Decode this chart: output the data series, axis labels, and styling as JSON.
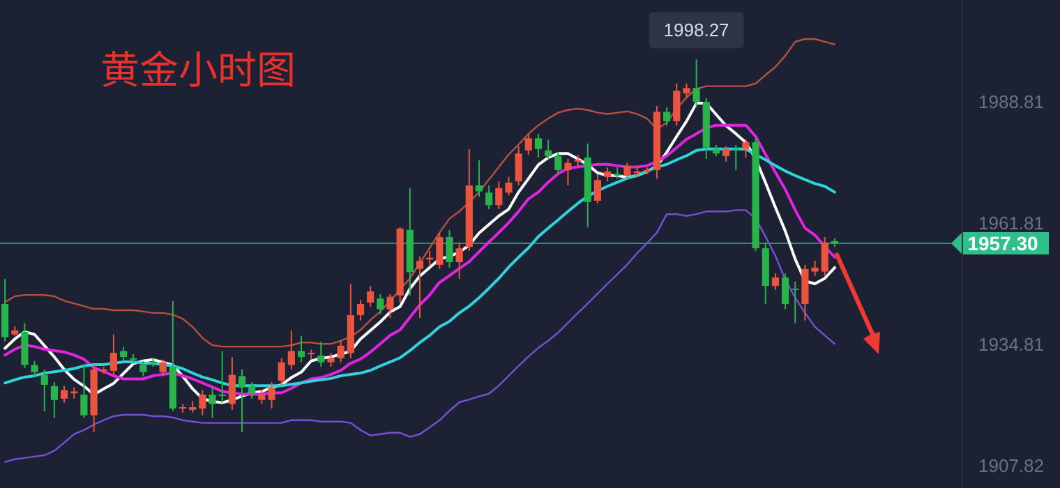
{
  "chart_data": {
    "type": "candlestick",
    "title": "黄金小时图",
    "categories": [
      null,
      null,
      null,
      null,
      null,
      null,
      null,
      null,
      null,
      null,
      null,
      null,
      null,
      null,
      null,
      null,
      null,
      null,
      null,
      null,
      null,
      null,
      null,
      null,
      null,
      null,
      null,
      null,
      null,
      null,
      null,
      null,
      null,
      null,
      null,
      null,
      null,
      null,
      null,
      null,
      null,
      null,
      null,
      null,
      null,
      null,
      null,
      null,
      null,
      null,
      null,
      null,
      null,
      null,
      null,
      null,
      null,
      null,
      null,
      null,
      null,
      null,
      null,
      null,
      null,
      null,
      null,
      null,
      null,
      null,
      null,
      null,
      null,
      null,
      null,
      null,
      null,
      null,
      null,
      null,
      null,
      null,
      null,
      null,
      null
    ],
    "ohlc": [
      [
        1943.8,
        1949.4,
        1935.4,
        1936.4
      ],
      [
        1937.0,
        1938.8,
        1936.7,
        1937.9
      ],
      [
        1937.6,
        1939.5,
        1929.5,
        1930.2
      ],
      [
        1930.2,
        1931.1,
        1927.7,
        1928.6
      ],
      [
        1928.0,
        1929.2,
        1919.9,
        1925.8
      ],
      [
        1925.5,
        1926.4,
        1918.4,
        1922.4
      ],
      [
        1922.7,
        1925.5,
        1921.8,
        1924.6
      ],
      [
        1923.9,
        1925.2,
        1922.7,
        1924.3
      ],
      [
        1923.6,
        1930.2,
        1918.4,
        1919.0
      ],
      [
        1919.0,
        1930.2,
        1915.3,
        1929.2
      ],
      [
        1928.9,
        1929.8,
        1928.3,
        1929.2
      ],
      [
        1928.9,
        1937.0,
        1928.0,
        1932.9
      ],
      [
        1933.3,
        1934.2,
        1931.1,
        1932.0
      ],
      [
        1931.7,
        1932.6,
        1930.5,
        1931.4
      ],
      [
        1930.2,
        1931.1,
        1927.7,
        1928.6
      ],
      [
        1930.8,
        1931.7,
        1929.8,
        1930.5
      ],
      [
        1928.6,
        1931.4,
        1927.7,
        1930.8
      ],
      [
        1929.8,
        1944.4,
        1919.9,
        1920.5
      ],
      [
        1920.5,
        1921.5,
        1919.6,
        1920.8
      ],
      [
        1920.2,
        1922.1,
        1919.6,
        1920.8
      ],
      [
        1920.5,
        1924.6,
        1919.0,
        1923.6
      ],
      [
        1923.6,
        1925.2,
        1918.4,
        1921.5
      ],
      [
        1923.6,
        1933.3,
        1921.8,
        1923.3
      ],
      [
        1921.5,
        1932.0,
        1920.2,
        1928.0
      ],
      [
        1927.7,
        1929.2,
        1915.3,
        1925.2
      ],
      [
        1925.5,
        1926.4,
        1922.7,
        1923.9
      ],
      [
        1922.4,
        1924.6,
        1921.5,
        1923.6
      ],
      [
        1922.4,
        1926.4,
        1920.5,
        1925.2
      ],
      [
        1926.7,
        1931.7,
        1925.8,
        1930.8
      ],
      [
        1930.2,
        1937.9,
        1929.2,
        1933.3
      ],
      [
        1933.3,
        1936.7,
        1930.8,
        1932.0
      ],
      [
        1932.6,
        1933.6,
        1931.4,
        1932.9
      ],
      [
        1932.3,
        1935.4,
        1929.8,
        1930.8
      ],
      [
        1930.8,
        1932.9,
        1929.8,
        1931.7
      ],
      [
        1931.7,
        1935.7,
        1930.8,
        1934.5
      ],
      [
        1932.9,
        1948.2,
        1931.7,
        1941.3
      ],
      [
        1941.3,
        1944.7,
        1940.1,
        1943.8
      ],
      [
        1944.1,
        1947.8,
        1943.2,
        1946.6
      ],
      [
        1945.0,
        1946.0,
        1941.6,
        1942.6
      ],
      [
        1942.6,
        1946.0,
        1940.7,
        1945.4
      ],
      [
        1945.7,
        1960.9,
        1944.1,
        1960.6
      ],
      [
        1960.3,
        1969.6,
        1945.7,
        1950.9
      ],
      [
        1951.6,
        1954.4,
        1940.7,
        1953.4
      ],
      [
        1953.7,
        1955.6,
        1952.2,
        1954.1
      ],
      [
        1952.5,
        1959.6,
        1951.6,
        1958.7
      ],
      [
        1958.7,
        1960.3,
        1951.9,
        1953.1
      ],
      [
        1953.1,
        1957.5,
        1949.4,
        1956.2
      ],
      [
        1956.5,
        1978.3,
        1955.6,
        1970.2
      ],
      [
        1970.2,
        1975.8,
        1967.7,
        1968.9
      ],
      [
        1968.6,
        1970.2,
        1964.9,
        1965.8
      ],
      [
        1965.8,
        1971.1,
        1964.9,
        1969.6
      ],
      [
        1968.6,
        1972.1,
        1968.0,
        1970.8
      ],
      [
        1971.1,
        1978.9,
        1970.2,
        1977.3
      ],
      [
        1978.0,
        1981.7,
        1977.0,
        1980.7
      ],
      [
        1980.7,
        1981.7,
        1976.4,
        1978.3
      ],
      [
        1978.0,
        1980.4,
        1976.1,
        1976.7
      ],
      [
        1976.7,
        1977.6,
        1972.7,
        1973.6
      ],
      [
        1973.6,
        1976.1,
        1970.2,
        1975.2
      ],
      [
        1975.5,
        1977.0,
        1974.5,
        1975.8
      ],
      [
        1976.4,
        1979.5,
        1960.9,
        1966.5
      ],
      [
        1966.8,
        1972.7,
        1966.2,
        1971.4
      ],
      [
        1972.1,
        1974.2,
        1971.1,
        1973.3
      ],
      [
        1972.7,
        1974.2,
        1971.7,
        1972.4
      ],
      [
        1972.4,
        1975.2,
        1971.7,
        1974.5
      ],
      [
        1973.0,
        1974.5,
        1972.1,
        1973.3
      ],
      [
        1973.3,
        1974.2,
        1972.7,
        1973.6
      ],
      [
        1973.6,
        1987.9,
        1971.7,
        1986.6
      ],
      [
        1986.6,
        1987.6,
        1983.5,
        1984.5
      ],
      [
        1984.5,
        1992.9,
        1983.5,
        1991.3
      ],
      [
        1990.7,
        1992.9,
        1989.7,
        1991.9
      ],
      [
        1991.9,
        1998.27,
        1987.6,
        1988.8
      ],
      [
        1988.8,
        1989.7,
        1976.1,
        1978.6
      ],
      [
        1978.3,
        1979.2,
        1976.7,
        1977.3
      ],
      [
        1976.7,
        1978.9,
        1975.5,
        1978.3
      ],
      [
        1978.3,
        1979.2,
        1973.6,
        1978.0
      ],
      [
        1978.3,
        1980.4,
        1976.4,
        1979.8
      ],
      [
        1979.8,
        1980.7,
        1955.6,
        1956.2
      ],
      [
        1956.2,
        1957.5,
        1943.8,
        1947.8
      ],
      [
        1947.8,
        1950.6,
        1946.9,
        1949.7
      ],
      [
        1949.7,
        1950.6,
        1942.6,
        1943.8
      ],
      [
        1947.2,
        1948.8,
        1939.5,
        1946.9
      ],
      [
        1943.8,
        1952.5,
        1940.1,
        1951.6
      ],
      [
        1951.0,
        1953.4,
        1950.0,
        1951.9
      ],
      [
        1951.0,
        1958.7,
        1950.0,
        1957.5
      ],
      [
        1957.8,
        1958.4,
        1956.5,
        1957.3
      ]
    ],
    "series": [
      {
        "type": "line",
        "color": "#ffffff",
        "values": [
          1933.9,
          1936.0,
          1937.6,
          1937.0,
          1934.5,
          1932.0,
          1929.2,
          1927.0,
          1925.5,
          1923.6,
          1924.9,
          1926.1,
          1928.3,
          1930.5,
          1931.1,
          1931.4,
          1930.8,
          1930.2,
          1927.7,
          1924.9,
          1922.7,
          1922.1,
          1921.8,
          1922.4,
          1923.3,
          1924.0,
          1924.3,
          1925.2,
          1925.8,
          1927.4,
          1928.6,
          1931.1,
          1931.7,
          1932.0,
          1932.6,
          1933.3,
          1936.0,
          1937.9,
          1939.8,
          1942.0,
          1943.2,
          1947.2,
          1950.0,
          1951.9,
          1953.8,
          1954.4,
          1955.3,
          1956.9,
          1959.6,
          1961.5,
          1963.4,
          1964.9,
          1968.7,
          1971.7,
          1974.8,
          1976.4,
          1977.3,
          1977.3,
          1976.1,
          1974.8,
          1973.0,
          1972.4,
          1972.4,
          1972.0,
          1972.4,
          1973.3,
          1974.5,
          1977.6,
          1981.1,
          1984.5,
          1988.5,
          1988.5,
          1986.0,
          1983.5,
          1981.7,
          1979.8,
          1976.1,
          1970.8,
          1965.3,
          1960.0,
          1953.8,
          1948.9,
          1948.3,
          1949.5,
          1951.9
        ]
      },
      {
        "type": "line",
        "color": "#e024e0",
        "values": [
          1932.4,
          1933.7,
          1934.6,
          1934.3,
          1933.7,
          1933.4,
          1933.1,
          1932.4,
          1931.5,
          1929.6,
          1928.7,
          1927.8,
          1927.1,
          1927.1,
          1927.1,
          1927.8,
          1928.1,
          1928.4,
          1927.8,
          1927.1,
          1926.2,
          1925.3,
          1924.3,
          1924.0,
          1923.7,
          1923.7,
          1923.7,
          1924.0,
          1924.0,
          1925.0,
          1926.2,
          1927.1,
          1927.4,
          1928.1,
          1929.0,
          1930.6,
          1931.5,
          1933.1,
          1934.9,
          1936.8,
          1938.0,
          1940.8,
          1943.6,
          1945.8,
          1948.6,
          1950.1,
          1951.7,
          1953.2,
          1955.4,
          1957.6,
          1959.7,
          1961.9,
          1964.4,
          1967.2,
          1968.7,
          1970.9,
          1972.8,
          1974.0,
          1974.3,
          1974.6,
          1974.9,
          1974.9,
          1974.6,
          1974.3,
          1974.3,
          1974.6,
          1975.5,
          1976.8,
          1978.6,
          1980.5,
          1981.7,
          1983.0,
          1983.6,
          1983.6,
          1983.6,
          1983.6,
          1981.1,
          1977.1,
          1973.1,
          1969.3,
          1964.7,
          1960.7,
          1959.1,
          1956.6,
          1954.2
        ]
      },
      {
        "type": "line",
        "color": "#2fd4da",
        "values": [
          1926.2,
          1926.9,
          1927.5,
          1927.8,
          1928.4,
          1928.7,
          1929.0,
          1929.4,
          1930.0,
          1930.3,
          1930.3,
          1930.6,
          1930.9,
          1930.9,
          1930.6,
          1930.6,
          1930.3,
          1930.0,
          1929.4,
          1928.4,
          1927.5,
          1926.9,
          1926.2,
          1925.6,
          1925.6,
          1925.6,
          1925.6,
          1925.6,
          1925.6,
          1925.9,
          1926.2,
          1926.6,
          1926.9,
          1927.2,
          1927.8,
          1928.1,
          1928.4,
          1929.0,
          1930.0,
          1930.9,
          1931.8,
          1933.4,
          1935.2,
          1936.8,
          1938.7,
          1939.9,
          1941.8,
          1943.3,
          1945.2,
          1947.3,
          1949.5,
          1952.0,
          1954.2,
          1956.3,
          1958.8,
          1960.7,
          1962.5,
          1964.4,
          1966.2,
          1967.8,
          1969.0,
          1970.0,
          1970.9,
          1971.8,
          1972.4,
          1973.4,
          1974.3,
          1974.9,
          1975.9,
          1976.8,
          1978.0,
          1978.3,
          1978.3,
          1978.3,
          1978.3,
          1978.3,
          1977.1,
          1975.9,
          1974.6,
          1973.4,
          1972.4,
          1971.5,
          1970.6,
          1970.0,
          1968.7
        ]
      },
      {
        "type": "line",
        "color": "#b9503f",
        "values": [
          1944.2,
          1945.5,
          1945.8,
          1945.8,
          1945.8,
          1945.5,
          1944.5,
          1943.9,
          1943.3,
          1942.7,
          1942.7,
          1942.4,
          1942.4,
          1942.4,
          1942.1,
          1941.8,
          1941.8,
          1941.4,
          1940.5,
          1938.7,
          1936.2,
          1934.6,
          1934.3,
          1934.3,
          1934.3,
          1934.3,
          1934.3,
          1934.3,
          1934.3,
          1934.6,
          1935.2,
          1935.2,
          1934.9,
          1934.9,
          1935.6,
          1936.5,
          1938.0,
          1940.2,
          1942.1,
          1944.5,
          1947.0,
          1949.5,
          1952.9,
          1956.3,
          1959.7,
          1962.8,
          1964.4,
          1966.5,
          1968.7,
          1971.5,
          1974.3,
          1977.1,
          1979.3,
          1981.7,
          1983.6,
          1985.1,
          1986.4,
          1987.0,
          1987.3,
          1987.0,
          1986.4,
          1986.1,
          1986.4,
          1986.7,
          1986.1,
          1985.1,
          1982.7,
          1984.2,
          1987.3,
          1989.8,
          1991.7,
          1992.3,
          1992.3,
          1992.3,
          1992.3,
          1992.3,
          1992.9,
          1994.8,
          1996.6,
          1999.1,
          2002.2,
          2002.8,
          2002.8,
          2002.2,
          2001.6
        ]
      },
      {
        "type": "line",
        "color": "#7a4fd8",
        "values": [
          1908.6,
          1909.2,
          1909.5,
          1909.8,
          1910.1,
          1911.1,
          1912.9,
          1914.8,
          1915.7,
          1916.9,
          1917.9,
          1918.8,
          1919.1,
          1919.1,
          1919.1,
          1918.8,
          1918.8,
          1918.5,
          1917.9,
          1917.6,
          1917.3,
          1917.3,
          1917.3,
          1917.3,
          1917.3,
          1917.3,
          1917.3,
          1917.3,
          1917.3,
          1917.9,
          1917.9,
          1917.9,
          1917.6,
          1917.6,
          1917.6,
          1917.3,
          1915.7,
          1914.5,
          1914.8,
          1915.1,
          1915.1,
          1914.2,
          1914.8,
          1916.3,
          1917.9,
          1920.0,
          1921.9,
          1922.5,
          1923.2,
          1923.8,
          1925.6,
          1927.8,
          1930.0,
          1932.1,
          1934.0,
          1935.6,
          1937.4,
          1939.6,
          1941.8,
          1943.9,
          1946.1,
          1948.3,
          1950.4,
          1952.6,
          1955.1,
          1957.3,
          1959.7,
          1963.8,
          1963.8,
          1963.4,
          1963.8,
          1964.4,
          1964.4,
          1964.4,
          1964.7,
          1964.7,
          1962.8,
          1958.8,
          1954.5,
          1949.2,
          1945.2,
          1941.8,
          1938.7,
          1936.8,
          1934.9
        ]
      }
    ],
    "ylim": [
      1902.8,
      2011.5
    ],
    "yticks": [
      1988.81,
      1961.81,
      1934.81,
      1907.82
    ],
    "tick_labels": "y",
    "ref_lines": [
      {
        "axis": "y",
        "value": 1957.3,
        "label": "1957.30",
        "color": "#2fbf88"
      }
    ],
    "annotations": [
      {
        "text": "1998.27",
        "y": 1998.27
      }
    ]
  }
}
